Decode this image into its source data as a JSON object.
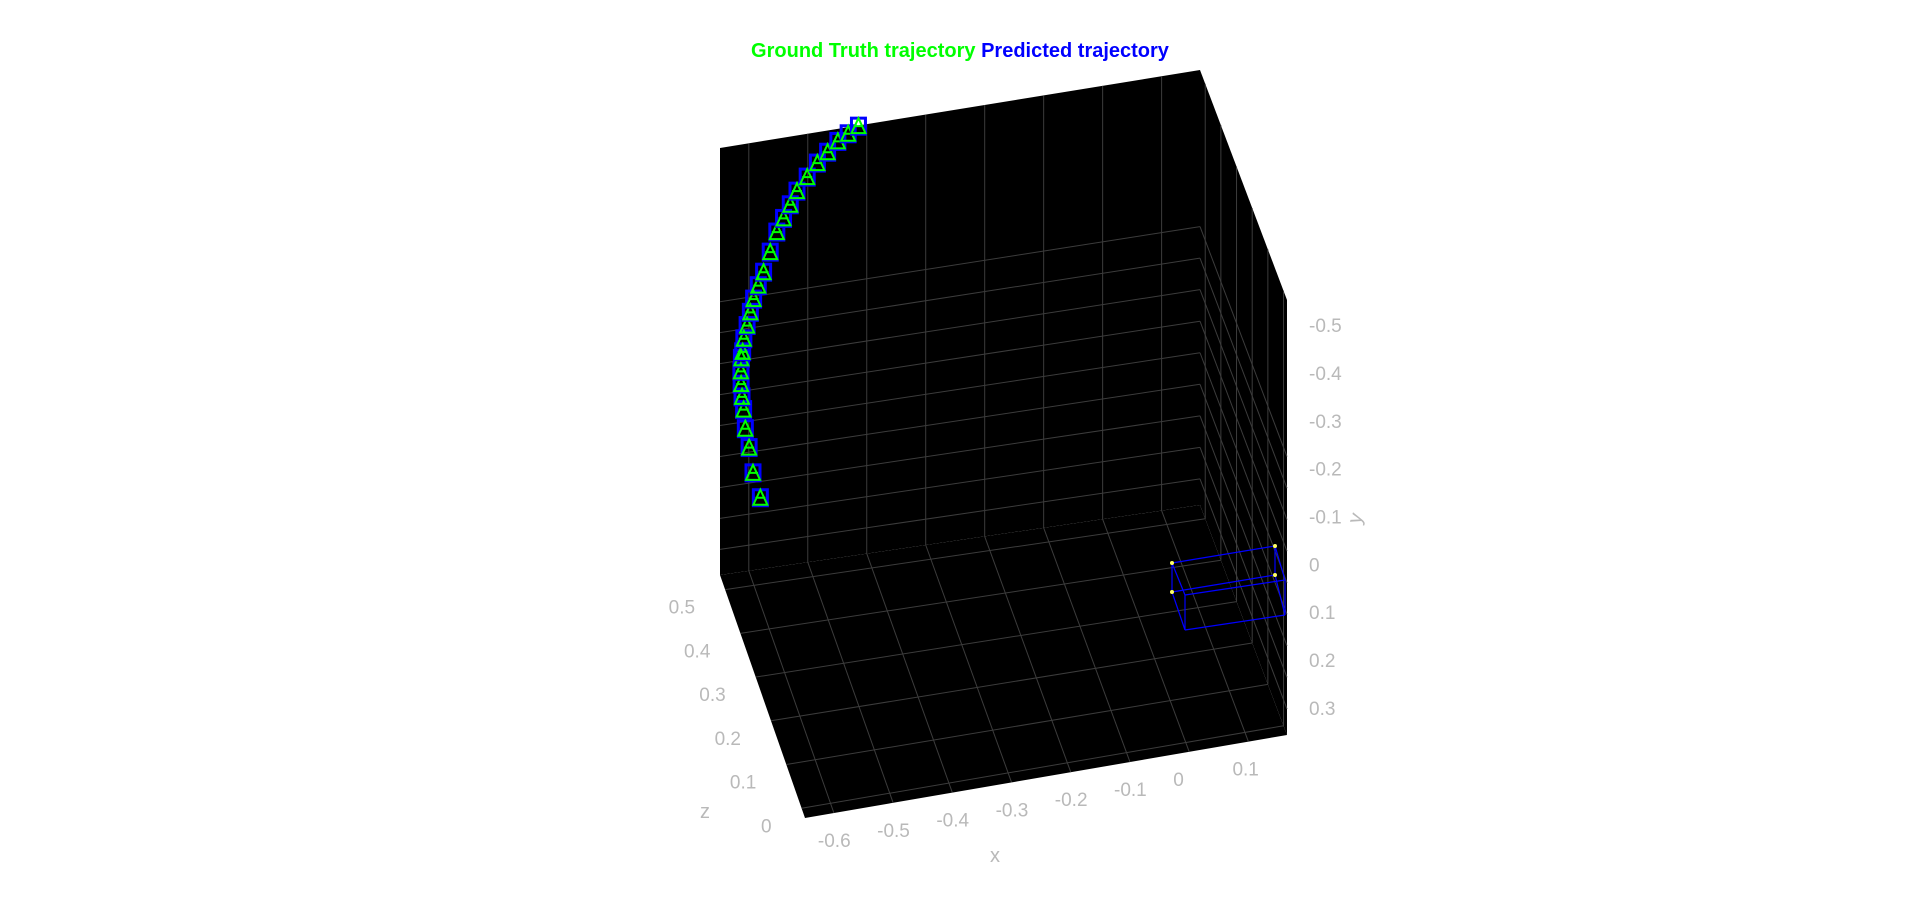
{
  "title": {
    "gt_label": "Ground Truth trajectory",
    "pred_label": "Predicted trajectory"
  },
  "colors": {
    "ground_truth": "#00ff00",
    "predicted": "#0000ff",
    "axes_background": "#000000",
    "grid": "#3c3c3c",
    "tick_text": "#b9b9b9"
  },
  "chart_data": {
    "type": "scatter",
    "plot_kind": "3d",
    "title": "Ground Truth trajectory Predicted trajectory",
    "xlabel": "x",
    "ylabel": "y",
    "zlabel": "z",
    "xlim": [
      -0.6,
      0.15
    ],
    "ylim": [
      -0.6,
      0.35
    ],
    "zlim": [
      0,
      0.55
    ],
    "y_reversed": true,
    "grid": true,
    "x_ticks": [
      "-0.6",
      "-0.5",
      "-0.4",
      "-0.3",
      "-0.2",
      "-0.1",
      "0",
      "0.1"
    ],
    "y_ticks": [
      "-0.5",
      "-0.4",
      "-0.3",
      "-0.2",
      "-0.1",
      "0",
      "0.1",
      "0.2",
      "0.3"
    ],
    "z_ticks": [
      "0",
      "0.1",
      "0.2",
      "0.3",
      "0.4",
      "0.5"
    ],
    "series": [
      {
        "name": "Ground Truth trajectory",
        "color": "#00ff00",
        "x": [
          -0.55,
          -0.56,
          -0.565,
          -0.57,
          -0.572,
          -0.574,
          -0.575,
          -0.575,
          -0.574,
          -0.572,
          -0.57,
          -0.565,
          -0.56,
          -0.555,
          -0.548,
          -0.54,
          -0.53,
          -0.52,
          -0.51,
          -0.5,
          -0.49,
          -0.475,
          -0.46,
          -0.445,
          -0.43,
          -0.415,
          -0.4
        ],
        "y": [
          -0.06,
          -0.1,
          -0.14,
          -0.17,
          -0.2,
          -0.22,
          -0.24,
          -0.26,
          -0.28,
          -0.29,
          -0.31,
          -0.33,
          -0.35,
          -0.37,
          -0.39,
          -0.41,
          -0.44,
          -0.47,
          -0.49,
          -0.51,
          -0.53,
          -0.55,
          -0.57,
          -0.585,
          -0.6,
          -0.61,
          -0.62
        ],
        "z": [
          0.55,
          0.55,
          0.55,
          0.55,
          0.55,
          0.55,
          0.55,
          0.55,
          0.55,
          0.55,
          0.55,
          0.55,
          0.55,
          0.55,
          0.55,
          0.55,
          0.55,
          0.55,
          0.55,
          0.55,
          0.55,
          0.55,
          0.55,
          0.55,
          0.55,
          0.55,
          0.55
        ]
      },
      {
        "name": "Predicted trajectory",
        "color": "#0000ff",
        "x": [
          -0.55,
          -0.56,
          -0.565,
          -0.57,
          -0.572,
          -0.574,
          -0.575,
          -0.575,
          -0.574,
          -0.572,
          -0.57,
          -0.565,
          -0.56,
          -0.555,
          -0.548,
          -0.54,
          -0.53,
          -0.52,
          -0.51,
          -0.5,
          -0.49,
          -0.475,
          -0.46,
          -0.445,
          -0.43,
          -0.415,
          -0.4
        ],
        "y": [
          -0.06,
          -0.1,
          -0.14,
          -0.17,
          -0.2,
          -0.22,
          -0.24,
          -0.26,
          -0.28,
          -0.29,
          -0.31,
          -0.33,
          -0.35,
          -0.37,
          -0.39,
          -0.41,
          -0.44,
          -0.47,
          -0.49,
          -0.51,
          -0.53,
          -0.55,
          -0.57,
          -0.585,
          -0.6,
          -0.61,
          -0.62
        ],
        "z": [
          0.55,
          0.55,
          0.55,
          0.55,
          0.55,
          0.55,
          0.55,
          0.55,
          0.55,
          0.55,
          0.55,
          0.55,
          0.55,
          0.55,
          0.55,
          0.55,
          0.55,
          0.55,
          0.55,
          0.55,
          0.55,
          0.55,
          0.55,
          0.55,
          0.55,
          0.55,
          0.55
        ]
      }
    ]
  }
}
